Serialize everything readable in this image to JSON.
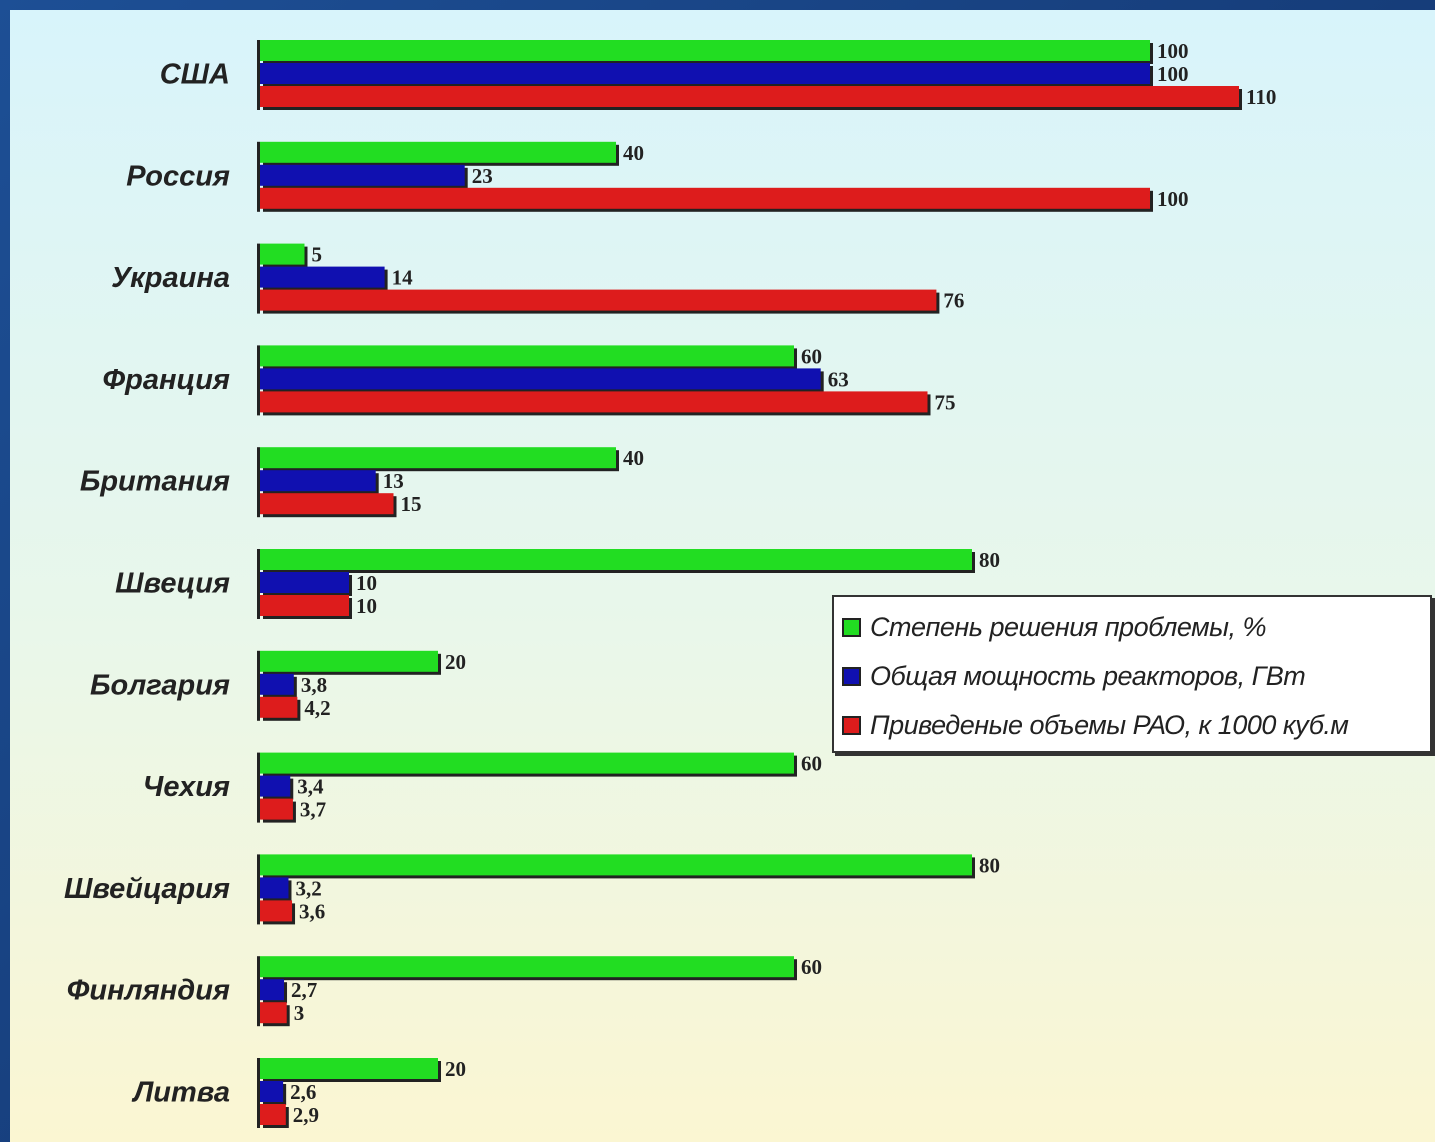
{
  "colors": {
    "green": "#22dd22",
    "blue": "#1010b0",
    "red": "#dd1c1c"
  },
  "chart_data": {
    "type": "bar",
    "orientation": "horizontal",
    "categories": [
      "США",
      "Россия",
      "Украина",
      "Франция",
      "Британия",
      "Швеция",
      "Болгария",
      "Чехия",
      "Швейцария",
      "Финляндия",
      "Литва"
    ],
    "series": [
      {
        "name": "Степень решения проблемы, %",
        "color": "#22dd22",
        "values": [
          100,
          40,
          5,
          60,
          40,
          80,
          20,
          60,
          80,
          60,
          20
        ],
        "labels": [
          "100",
          "40",
          "5",
          "60",
          "40",
          "80",
          "20",
          "60",
          "80",
          "60",
          "20"
        ]
      },
      {
        "name": "Общая мощность реакторов, ГВт",
        "color": "#1010b0",
        "values": [
          100,
          23,
          14,
          63,
          13,
          10,
          3.8,
          3.4,
          3.2,
          2.7,
          2.6
        ],
        "labels": [
          "100",
          "23",
          "14",
          "63",
          "13",
          "10",
          "3,8",
          "3,4",
          "3,2",
          "2,7",
          "2,6"
        ]
      },
      {
        "name": "Приведеные объемы РАО, к 1000 куб.м",
        "color": "#dd1c1c",
        "values": [
          110,
          100,
          76,
          75,
          15,
          10,
          4.2,
          3.7,
          3.6,
          3,
          2.9
        ],
        "labels": [
          "110",
          "100",
          "76",
          "75",
          "15",
          "10",
          "4,2",
          "3,7",
          "3,6",
          "3",
          "2,9"
        ]
      }
    ],
    "xlim": [
      0,
      110
    ],
    "legend": "right-middle",
    "grid": false
  }
}
